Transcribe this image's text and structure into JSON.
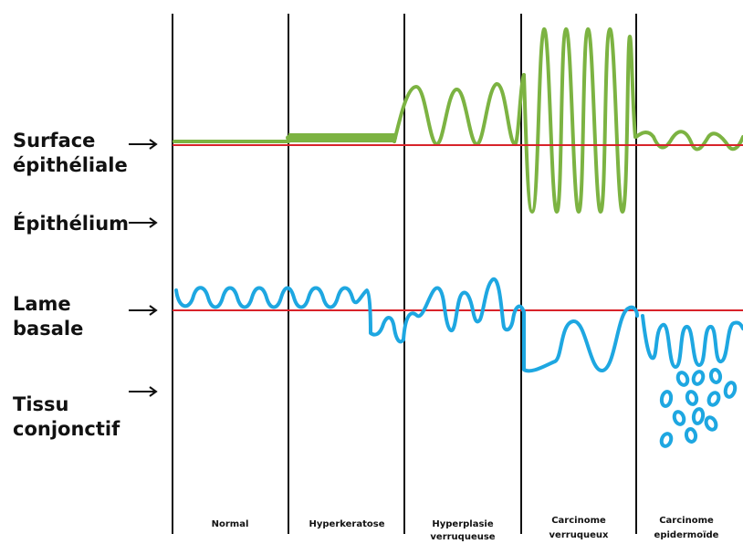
{
  "labels": {
    "surface_line1": "Surface",
    "surface_line2": "épithéliale",
    "epithelium": "Épithélium",
    "lame_line1": "Lame",
    "lame_line2": "basale",
    "tissu_line1": "Tissu",
    "tissu_line2": "conjonctif"
  },
  "stages": [
    {
      "line1": "Normal",
      "line2": ""
    },
    {
      "line1": "Hyperkeratose",
      "line2": ""
    },
    {
      "line1": "Hyperplasie",
      "line2": "verruqueuse"
    },
    {
      "line1": "Carcinome",
      "line2": "verruqueux"
    },
    {
      "line1": "Carcinome",
      "line2": "epidermoïde"
    }
  ],
  "colors": {
    "epithelium_line": "#7cb342",
    "basal_line": "#1ea7e1",
    "reference_line": "#d8232a",
    "divider": "#111111",
    "text": "#111111"
  },
  "icons": {
    "arrow": "right-arrow-icon"
  }
}
